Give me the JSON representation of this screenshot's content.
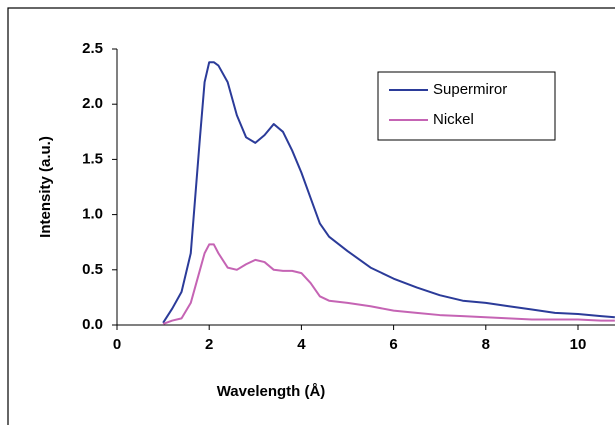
{
  "chart_data": {
    "type": "line",
    "x_label": "Wavelength (Å)",
    "y_label": "Intensity (a.u.)",
    "x": [
      1.0,
      1.2,
      1.4,
      1.6,
      1.8,
      1.9,
      2.0,
      2.1,
      2.2,
      2.4,
      2.6,
      2.8,
      3.0,
      3.2,
      3.4,
      3.6,
      3.8,
      4.0,
      4.2,
      4.4,
      4.6,
      5,
      5.5,
      6,
      6.5,
      7,
      7.5,
      8,
      8.5,
      9,
      9.5,
      10,
      10.5,
      10.8
    ],
    "series": [
      {
        "name": "Supermiror",
        "color": "#2b3b99",
        "values": [
          0.02,
          0.15,
          0.3,
          0.65,
          1.7,
          2.2,
          2.38,
          2.38,
          2.35,
          2.2,
          1.9,
          1.7,
          1.65,
          1.72,
          1.82,
          1.75,
          1.58,
          1.38,
          1.15,
          0.92,
          0.8,
          0.67,
          0.52,
          0.42,
          0.34,
          0.27,
          0.22,
          0.2,
          0.17,
          0.14,
          0.11,
          0.1,
          0.08,
          0.07
        ]
      },
      {
        "name": "Nickel",
        "color": "#c564b4",
        "values": [
          0.01,
          0.04,
          0.06,
          0.2,
          0.5,
          0.65,
          0.73,
          0.73,
          0.65,
          0.52,
          0.5,
          0.55,
          0.59,
          0.57,
          0.5,
          0.49,
          0.49,
          0.47,
          0.38,
          0.26,
          0.22,
          0.2,
          0.17,
          0.13,
          0.11,
          0.09,
          0.08,
          0.07,
          0.06,
          0.05,
          0.05,
          0.05,
          0.04,
          0.04
        ]
      }
    ],
    "xlim": [
      0,
      10.8
    ],
    "xticks": [
      0,
      2,
      4,
      6,
      8,
      10
    ],
    "ylim": [
      0,
      2.5
    ],
    "yticks": [
      {
        "value": 0,
        "label": "0.0"
      },
      0.5,
      {
        "value": 1,
        "label": "1.0"
      },
      1.5,
      {
        "value": 2,
        "label": "2.0"
      },
      2.5
    ],
    "legend": "upper right"
  }
}
